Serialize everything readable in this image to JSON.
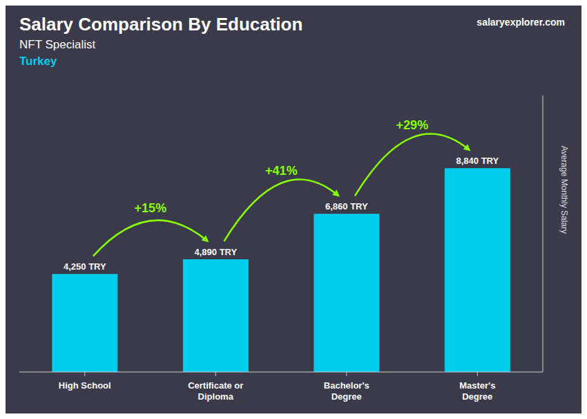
{
  "chart_data": {
    "type": "bar",
    "title": "Salary Comparison By Education",
    "subtitle": [
      "NFT Specialist",
      "Turkey"
    ],
    "source": "salaryexplorer.com",
    "categories": [
      "High School",
      "Certificate or\nDiploma",
      "Bachelor's\nDegree",
      "Master's\nDegree"
    ],
    "values": [
      4250,
      4890,
      6860,
      8840
    ],
    "value_labels": [
      "4,250 TRY",
      "4,890 TRY",
      "6,860 TRY",
      "8,840 TRY"
    ],
    "data_labels": true,
    "annotations": [
      {
        "text": "+15%",
        "color": "#88ff00"
      },
      {
        "text": "+41%",
        "color": "#88ff00"
      },
      {
        "text": "+29%",
        "color": "#88ff00"
      }
    ],
    "ylabel": "Average Monthly Salary",
    "ylim": [
      0,
      12000
    ],
    "grid": false,
    "tick_labels": "x",
    "color": "#00ccee"
  }
}
